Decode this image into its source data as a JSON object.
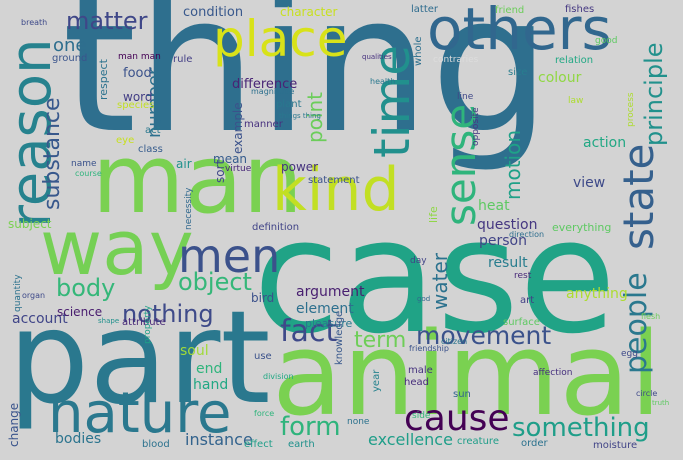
{
  "background": "#d3d3d3",
  "words": [
    {
      "text": "thing",
      "color": "#2e6f8e"
    },
    {
      "text": "case",
      "color": "#20a386"
    },
    {
      "text": "part",
      "color": "#2a788e"
    },
    {
      "text": "animal",
      "color": "#7ad151"
    },
    {
      "text": "man",
      "color": "#7ad151"
    },
    {
      "text": "way",
      "color": "#75d054"
    },
    {
      "text": "nature",
      "color": "#2a788e"
    },
    {
      "text": "others",
      "color": "#31678e"
    },
    {
      "text": "reason",
      "color": "#26828e"
    },
    {
      "text": "kind",
      "color": "#c2df23"
    },
    {
      "text": "time",
      "color": "#21908d"
    },
    {
      "text": "place",
      "color": "#d8e219"
    },
    {
      "text": "men",
      "color": "#3b518b"
    },
    {
      "text": "cause",
      "color": "#440154"
    },
    {
      "text": "sense",
      "color": "#2fb47c"
    },
    {
      "text": "state",
      "color": "#35608d"
    },
    {
      "text": "people",
      "color": "#2a788e"
    },
    {
      "text": "fact",
      "color": "#3e4989"
    },
    {
      "text": "form",
      "color": "#2fb47c"
    },
    {
      "text": "movement",
      "color": "#3b528b"
    },
    {
      "text": "something",
      "color": "#1f9e89"
    },
    {
      "text": "body",
      "color": "#35b779"
    },
    {
      "text": "object",
      "color": "#35b779"
    },
    {
      "text": "nothing",
      "color": "#3e4a89"
    },
    {
      "text": "term",
      "color": "#6ece58"
    },
    {
      "text": "water",
      "color": "#2c728e"
    },
    {
      "text": "substance",
      "color": "#38588c"
    },
    {
      "text": "matter",
      "color": "#3f4788"
    },
    {
      "text": "principle",
      "color": "#21918c"
    },
    {
      "text": "motion",
      "color": "#1fa188"
    },
    {
      "text": "point",
      "color": "#6ccd5a"
    },
    {
      "text": "number",
      "color": "#2d708e"
    },
    {
      "text": "excellence",
      "color": "#1f9e89"
    },
    {
      "text": "instance",
      "color": "#33638d"
    },
    {
      "text": "bodies",
      "color": "#2b748e"
    },
    {
      "text": "account",
      "color": "#404588"
    },
    {
      "text": "soul",
      "color": "#a0da39"
    },
    {
      "text": "end",
      "color": "#2fb47c"
    },
    {
      "text": "hand",
      "color": "#22a884"
    },
    {
      "text": "element",
      "color": "#2d708e"
    },
    {
      "text": "argument",
      "color": "#481f70"
    },
    {
      "text": "result",
      "color": "#287d8e"
    },
    {
      "text": "question",
      "color": "#453781"
    },
    {
      "text": "person",
      "color": "#414487"
    },
    {
      "text": "heat",
      "color": "#5ec962"
    },
    {
      "text": "view",
      "color": "#3e4a89"
    },
    {
      "text": "action",
      "color": "#22a884"
    },
    {
      "text": "colour",
      "color": "#90d743"
    },
    {
      "text": "anything",
      "color": "#addc30"
    },
    {
      "text": "one",
      "color": "#2e6e8e"
    },
    {
      "text": "food",
      "color": "#3b528b"
    },
    {
      "text": "condition",
      "color": "#38588c"
    },
    {
      "text": "difference",
      "color": "#482475"
    },
    {
      "text": "word",
      "color": "#433e85"
    },
    {
      "text": "example",
      "color": "#3b528b"
    },
    {
      "text": "respect",
      "color": "#2c728e"
    },
    {
      "text": "sort",
      "color": "#3f4788"
    },
    {
      "text": "mean",
      "color": "#365c8d"
    },
    {
      "text": "air",
      "color": "#21918c"
    },
    {
      "text": "power",
      "color": "#46337e"
    },
    {
      "text": "subject",
      "color": "#7ad151"
    },
    {
      "text": "bird",
      "color": "#3b518b"
    },
    {
      "text": "science",
      "color": "#481c6e"
    },
    {
      "text": "change",
      "color": "#3a548c"
    },
    {
      "text": "pleasure",
      "color": "#2a788e"
    },
    {
      "text": "life",
      "color": "#8fd744"
    },
    {
      "text": "character",
      "color": "#c8e020"
    },
    {
      "text": "everything",
      "color": "#5ec962"
    },
    {
      "text": "statement",
      "color": "#3b528b"
    },
    {
      "text": "definition",
      "color": "#414487"
    },
    {
      "text": "knowledge",
      "color": "#38588c"
    },
    {
      "text": "creature",
      "color": "#1f9e89"
    },
    {
      "text": "effect",
      "color": "#1f9e89"
    },
    {
      "text": "earth",
      "color": "#21918c"
    },
    {
      "text": "order",
      "color": "#2c728e"
    },
    {
      "text": "moisture",
      "color": "#414487"
    },
    {
      "text": "head",
      "color": "#472d7b"
    },
    {
      "text": "sun",
      "color": "#32658e"
    },
    {
      "text": "eye",
      "color": "#c8e020"
    },
    {
      "text": "latter",
      "color": "#2f6c8e"
    },
    {
      "text": "fishes",
      "color": "#453882"
    },
    {
      "text": "whole",
      "color": "#2d708e"
    },
    {
      "text": "size",
      "color": "#287d8e"
    },
    {
      "text": "relation",
      "color": "#22a884"
    },
    {
      "text": "ground",
      "color": "#3a548c"
    },
    {
      "text": "man man",
      "color": "#440154"
    },
    {
      "text": "contraries",
      "color": "#ddd"
    },
    {
      "text": "plant",
      "color": "#2a788e"
    },
    {
      "text": "magnitude",
      "color": "#2d708e"
    },
    {
      "text": "species",
      "color": "#c2df23"
    },
    {
      "text": "manner",
      "color": "#46307e"
    },
    {
      "text": "virtue",
      "color": "#482878"
    },
    {
      "text": "act",
      "color": "#2a788e"
    },
    {
      "text": "class",
      "color": "#365c8d"
    },
    {
      "text": "name",
      "color": "#3b528b"
    },
    {
      "text": "course",
      "color": "#2fb47c"
    },
    {
      "text": "rule",
      "color": "#433e85"
    },
    {
      "text": "breath",
      "color": "#3e4a89"
    },
    {
      "text": "health",
      "color": "#2a788e"
    },
    {
      "text": "qualities",
      "color": "#46307e"
    },
    {
      "text": "things thing",
      "color": "#2a788e"
    },
    {
      "text": "necessity",
      "color": "#31688e"
    },
    {
      "text": "line",
      "color": "#3f4788"
    },
    {
      "text": "opposite",
      "color": "#443a83"
    },
    {
      "text": "law",
      "color": "#addc30"
    },
    {
      "text": "direction",
      "color": "#2e6e8e"
    },
    {
      "text": "day",
      "color": "#414487"
    },
    {
      "text": "rest",
      "color": "#482878"
    },
    {
      "text": "art",
      "color": "#423f85"
    },
    {
      "text": "friendship",
      "color": "#3b528b"
    },
    {
      "text": "affection",
      "color": "#46307e"
    },
    {
      "text": "egg",
      "color": "#3e4989"
    },
    {
      "text": "circle",
      "color": "#3e4989"
    },
    {
      "text": "truth",
      "color": "#5ec962"
    },
    {
      "text": "year",
      "color": "#26828e"
    },
    {
      "text": "side",
      "color": "#35b779"
    },
    {
      "text": "male",
      "color": "#46337e"
    },
    {
      "text": "none",
      "color": "#2c728e"
    },
    {
      "text": "citizen",
      "color": "#2b748e"
    },
    {
      "text": "god",
      "color": "#31688e"
    },
    {
      "text": "use",
      "color": "#3b528b"
    },
    {
      "text": "force",
      "color": "#2fb47c"
    },
    {
      "text": "surface",
      "color": "#5ec962"
    },
    {
      "text": "flesh",
      "color": "#6ccd5a"
    },
    {
      "text": "organ",
      "color": "#3e4989"
    },
    {
      "text": "quantity",
      "color": "#2c728e"
    },
    {
      "text": "shape",
      "color": "#21918c"
    },
    {
      "text": "attribute",
      "color": "#482878"
    },
    {
      "text": "property",
      "color": "#1fa188"
    },
    {
      "text": "blood",
      "color": "#2c728e"
    },
    {
      "text": "division",
      "color": "#22a884"
    },
    {
      "text": "friend",
      "color": "#6ccd5a"
    },
    {
      "text": "good",
      "color": "#5ec962"
    },
    {
      "text": "process",
      "color": "#addc30"
    }
  ]
}
